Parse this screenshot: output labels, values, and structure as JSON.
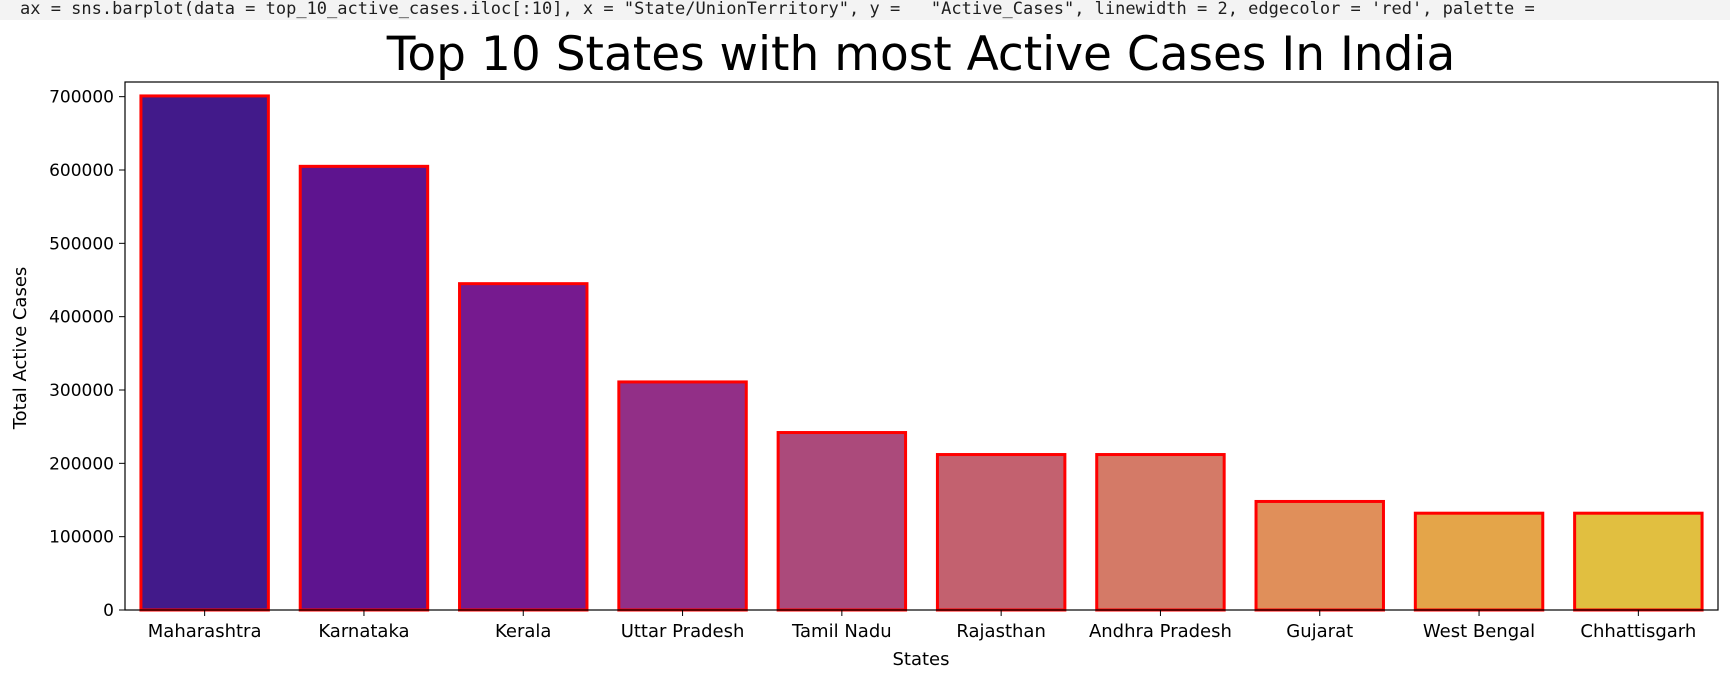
{
  "code_line": "ax = sns.barplot(data = top_10_active_cases.iloc[:10], x = \"State/UnionTerritory\", y =   \"Active_Cases\", linewidth = 2, edgecolor = 'red', palette =",
  "chart_data": {
    "type": "bar",
    "title": "Top 10 States with most Active Cases In India",
    "xlabel": "States",
    "ylabel": "Total Active Cases",
    "ylim": [
      0,
      720000
    ],
    "yticks": [
      0,
      100000,
      200000,
      300000,
      400000,
      500000,
      600000,
      700000
    ],
    "categories": [
      "Maharashtra",
      "Karnataka",
      "Kerala",
      "Uttar Pradesh",
      "Tamil Nadu",
      "Rajasthan",
      "Andhra Pradesh",
      "Gujarat",
      "West Bengal",
      "Chhattisgarh"
    ],
    "values": [
      701000,
      605000,
      445000,
      311000,
      242000,
      212000,
      212000,
      148000,
      132000,
      132000
    ],
    "bar_colors": [
      "#421a8a",
      "#5e148f",
      "#761a8f",
      "#922f87",
      "#ab4a7b",
      "#c3616f",
      "#d47a67",
      "#e08f5a",
      "#e4a549",
      "#e1bf40"
    ],
    "edge_color": "#ff0000",
    "grid": false
  }
}
